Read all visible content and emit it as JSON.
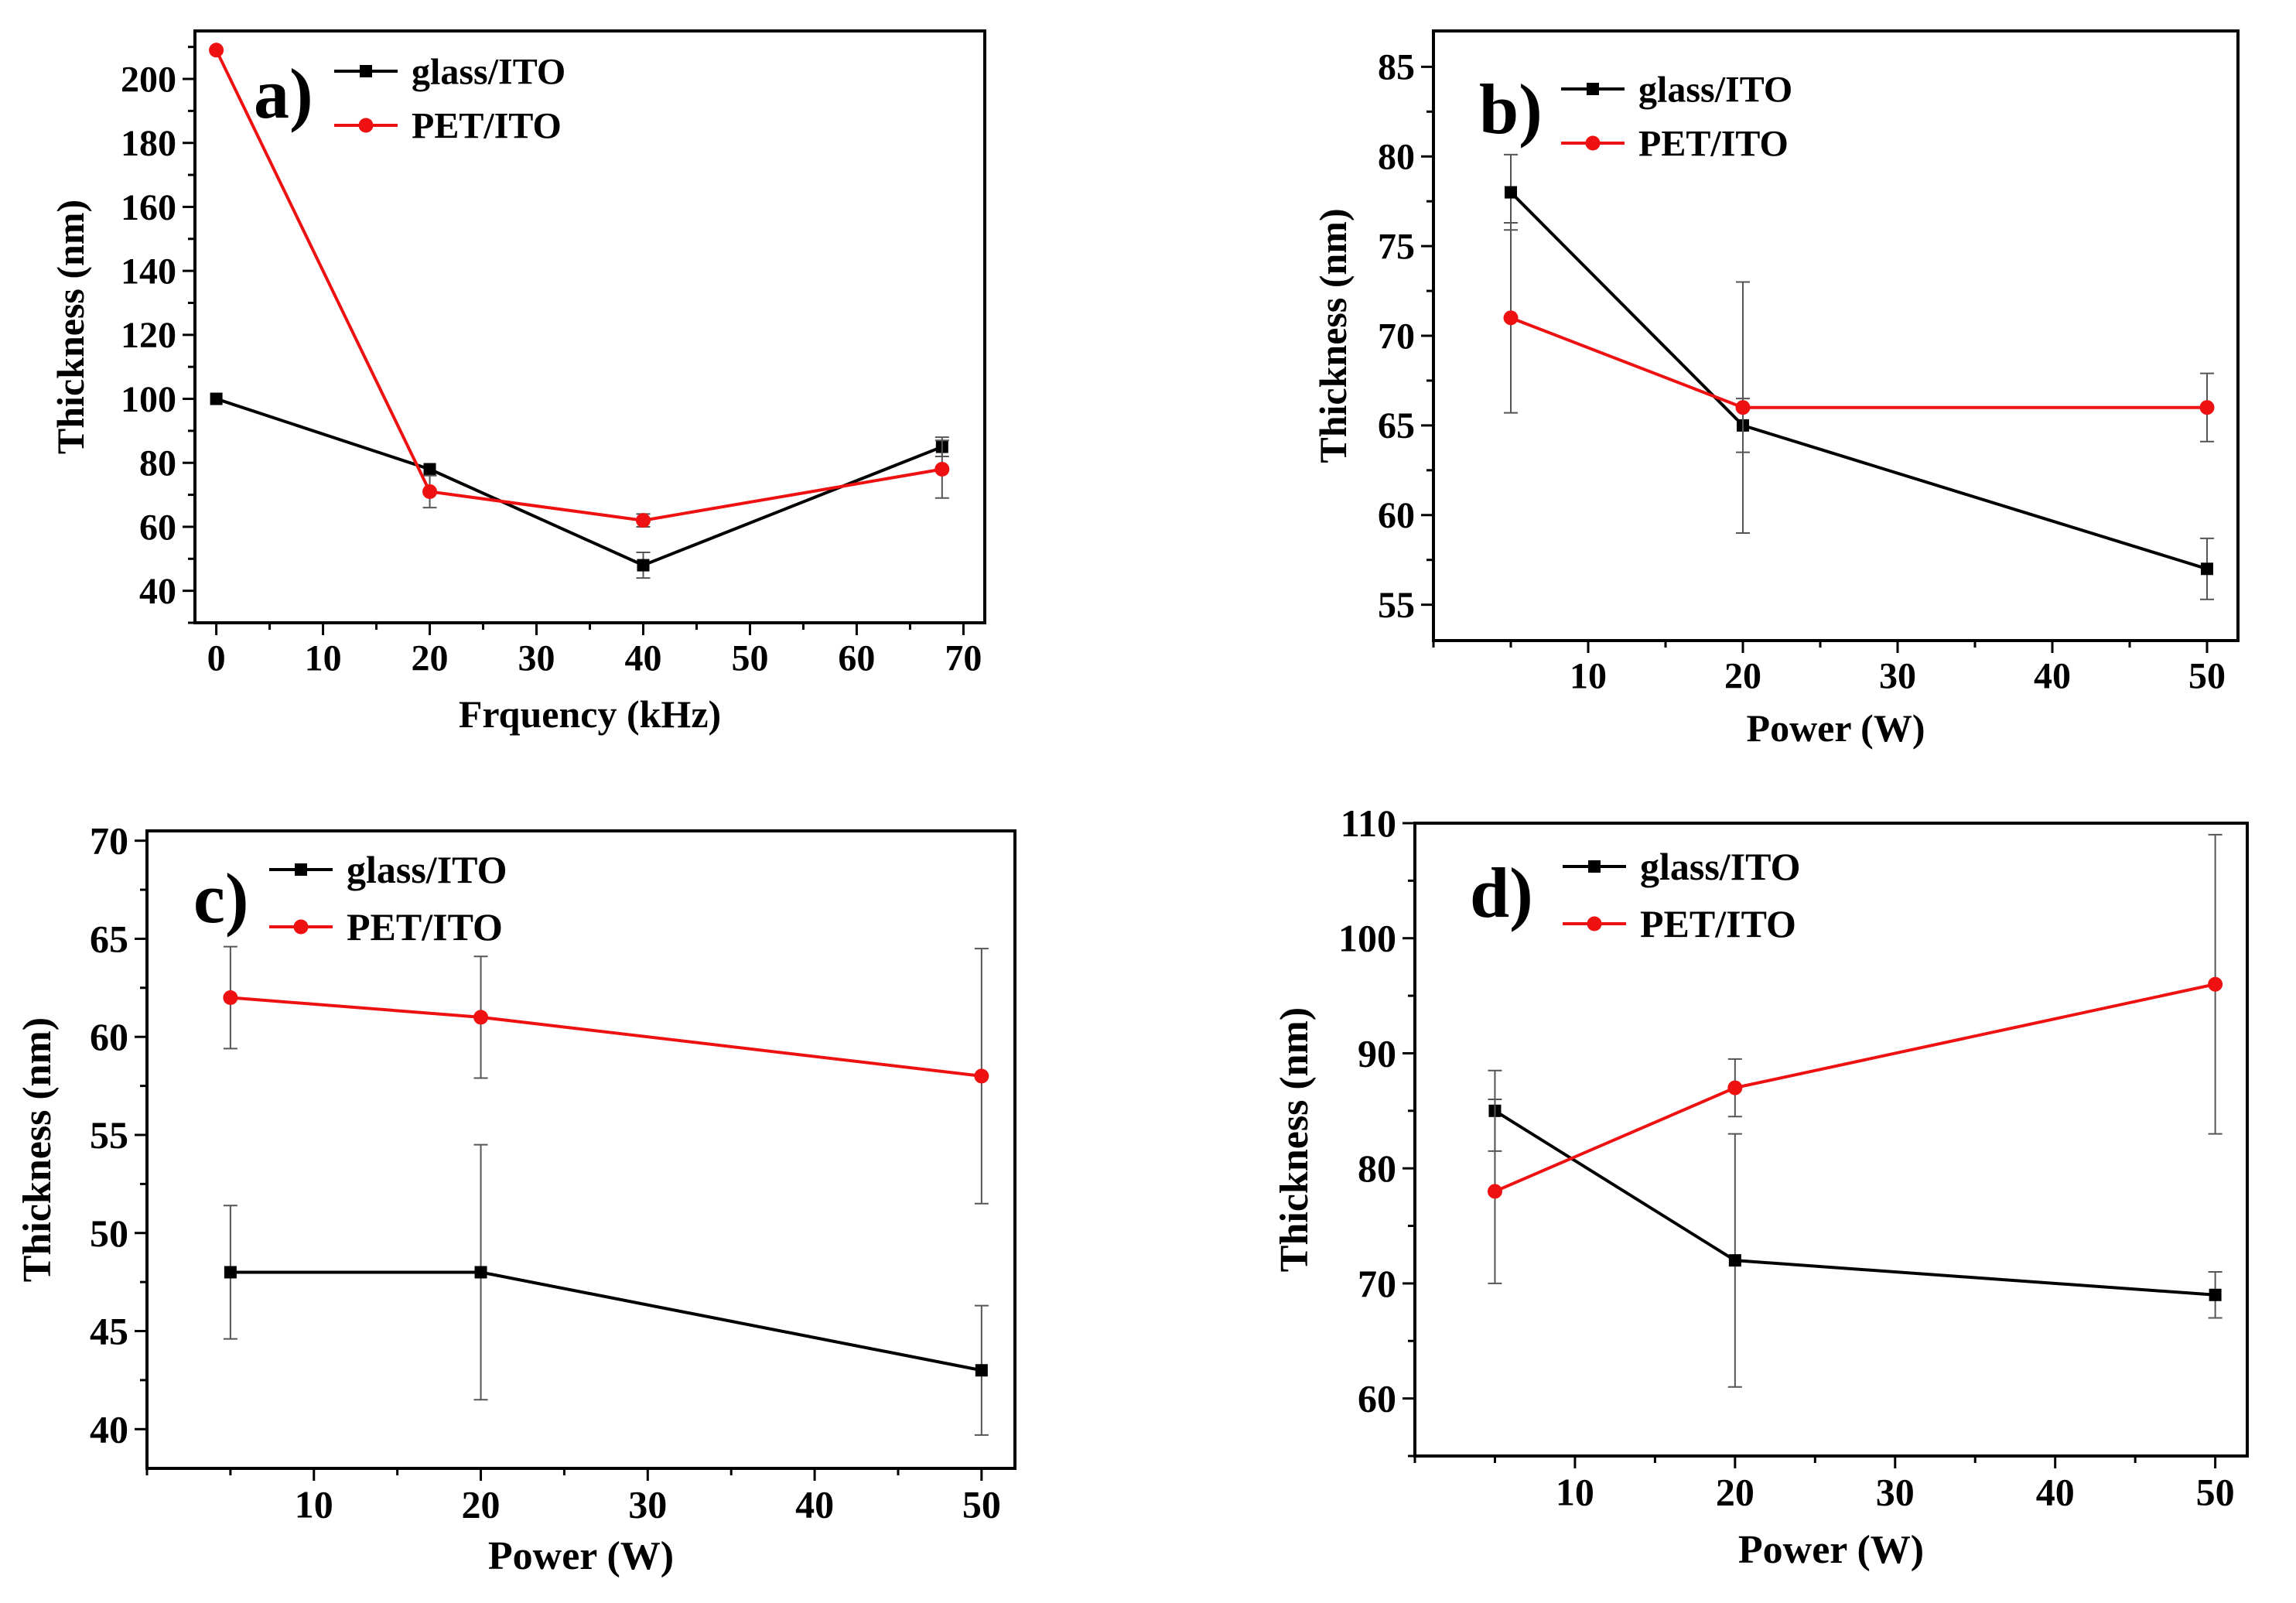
{
  "chart_data": [
    {
      "type": "line",
      "panel_label": "a)",
      "xlabel": "Frquency (kHz)",
      "ylabel": "Thickness (nm)",
      "xlim": [
        -2,
        72
      ],
      "ylim": [
        30,
        215
      ],
      "x_ticks": [
        0,
        10,
        20,
        30,
        40,
        50,
        60,
        70
      ],
      "y_ticks": [
        40,
        60,
        80,
        100,
        120,
        140,
        160,
        180,
        200
      ],
      "x_tick_labels": [
        "0",
        "10",
        "20",
        "30",
        "40",
        "50",
        "60",
        "70"
      ],
      "y_tick_labels": [
        "40",
        "60",
        "80",
        "100",
        "120",
        "140",
        "160",
        "180",
        "200"
      ],
      "series": [
        {
          "name": "glass/ITO",
          "color": "#000000",
          "marker": "square",
          "x": [
            0,
            20,
            40,
            68
          ],
          "values": [
            100,
            78,
            48,
            85
          ],
          "err": [
            0,
            0,
            4,
            3
          ]
        },
        {
          "name": "PET/ITO",
          "color": "#ee1111",
          "marker": "circle",
          "x": [
            0,
            20,
            40,
            68
          ],
          "values": [
            209,
            71,
            62,
            78
          ],
          "err": [
            0,
            5,
            2,
            9
          ]
        }
      ]
    },
    {
      "type": "line",
      "panel_label": "b)",
      "xlabel": "Power (W)",
      "ylabel": "Thickness (nm)",
      "xlim": [
        0,
        52
      ],
      "ylim": [
        53,
        87
      ],
      "x_ticks": [
        10,
        20,
        30,
        40,
        50
      ],
      "y_ticks": [
        55,
        60,
        65,
        70,
        75,
        80,
        85
      ],
      "x_tick_labels": [
        "10",
        "20",
        "30",
        "40",
        "50"
      ],
      "y_tick_labels": [
        "55",
        "60",
        "65",
        "70",
        "75",
        "80",
        "85"
      ],
      "series": [
        {
          "name": "glass/ITO",
          "color": "#000000",
          "marker": "square",
          "x": [
            5,
            20,
            50
          ],
          "values": [
            78,
            65,
            57
          ],
          "err": [
            2.1,
            1.5,
            1.7
          ]
        },
        {
          "name": "PET/ITO",
          "color": "#ee1111",
          "marker": "circle",
          "x": [
            5,
            20,
            50
          ],
          "values": [
            71,
            66,
            66
          ],
          "err": [
            5.3,
            7.0,
            1.9
          ]
        }
      ]
    },
    {
      "type": "line",
      "panel_label": "c)",
      "xlabel": "Power (W)",
      "ylabel": "Thickness (nm)",
      "xlim": [
        0,
        52
      ],
      "ylim": [
        38,
        70.5
      ],
      "x_ticks": [
        10,
        20,
        30,
        40,
        50
      ],
      "y_ticks": [
        40,
        45,
        50,
        55,
        60,
        65,
        70
      ],
      "x_tick_labels": [
        "10",
        "20",
        "30",
        "40",
        "50"
      ],
      "y_tick_labels": [
        "40",
        "45",
        "50",
        "55",
        "60",
        "65",
        "70"
      ],
      "series": [
        {
          "name": "glass/ITO",
          "color": "#000000",
          "marker": "square",
          "x": [
            5,
            20,
            50
          ],
          "values": [
            48,
            48,
            43
          ],
          "err": [
            3.4,
            6.5,
            3.3
          ]
        },
        {
          "name": "PET/ITO",
          "color": "#ee1111",
          "marker": "circle",
          "x": [
            5,
            20,
            50
          ],
          "values": [
            62,
            61,
            58
          ],
          "err": [
            2.6,
            3.1,
            6.5
          ]
        }
      ]
    },
    {
      "type": "line",
      "panel_label": "d)",
      "xlabel": "Power (W)",
      "ylabel": "Thickness (nm)",
      "xlim": [
        0,
        52
      ],
      "ylim": [
        55,
        110
      ],
      "x_ticks": [
        10,
        20,
        30,
        40,
        50
      ],
      "y_ticks": [
        60,
        70,
        80,
        90,
        100,
        110
      ],
      "x_tick_labels": [
        "10",
        "20",
        "30",
        "40",
        "50"
      ],
      "y_tick_labels": [
        "60",
        "70",
        "80",
        "90",
        "100",
        "110"
      ],
      "series": [
        {
          "name": "glass/ITO",
          "color": "#000000",
          "marker": "square",
          "x": [
            5,
            20,
            50
          ],
          "values": [
            85,
            72,
            69
          ],
          "err": [
            3.5,
            11,
            2
          ]
        },
        {
          "name": "PET/ITO",
          "color": "#ee1111",
          "marker": "circle",
          "x": [
            5,
            20,
            50
          ],
          "values": [
            78,
            87,
            96
          ],
          "err": [
            8,
            2.5,
            13
          ]
        }
      ]
    }
  ]
}
